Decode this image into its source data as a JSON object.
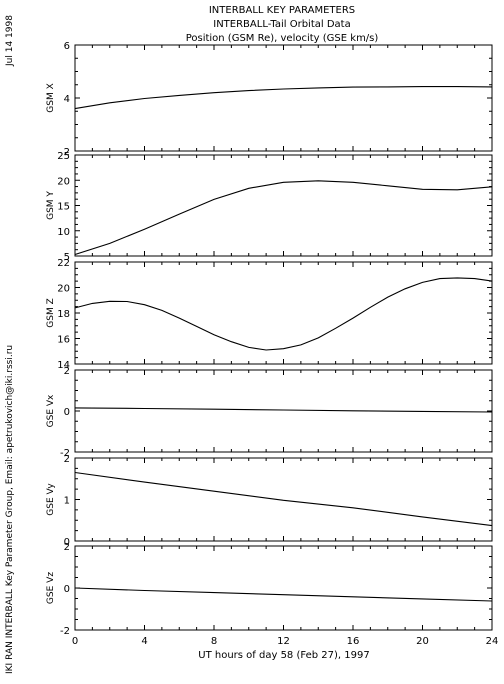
{
  "header": {
    "title_lines": [
      "INTERBALL KEY PARAMETERS",
      "INTERBALL-Tail Orbital Data",
      "Position (GSM Re), velocity (GSE km/s)"
    ],
    "date_stamp": "Jul 14 1998",
    "credit": "IKI RAN INTERBALL Key Parameter Group, Email: apetrukovich@iki.rssi.ru"
  },
  "chart_data": {
    "type": "line",
    "xlabel": "UT hours of day  58 (Feb 27), 1997",
    "xlim": [
      0,
      24
    ],
    "xticks": [
      0,
      4,
      8,
      12,
      16,
      20,
      24
    ],
    "panels": [
      {
        "ylabel": "GSM X",
        "ylim": [
          2,
          6
        ],
        "yticks": [
          2,
          4,
          6
        ],
        "x": [
          0,
          2,
          4,
          6,
          8,
          10,
          12,
          14,
          16,
          18,
          20,
          22,
          24
        ],
        "y": [
          3.6,
          3.82,
          3.98,
          4.1,
          4.2,
          4.28,
          4.34,
          4.38,
          4.41,
          4.42,
          4.43,
          4.43,
          4.42
        ]
      },
      {
        "ylabel": "GSM Y",
        "ylim": [
          5,
          25
        ],
        "yticks": [
          5,
          10,
          15,
          20,
          25
        ],
        "x": [
          0,
          2,
          4,
          6,
          8,
          10,
          12,
          14,
          16,
          18,
          20,
          22,
          24
        ],
        "y": [
          5.3,
          7.5,
          10.3,
          13.3,
          16.2,
          18.4,
          19.6,
          19.9,
          19.6,
          18.9,
          18.2,
          18.1,
          18.7
        ]
      },
      {
        "ylabel": "GSM Z",
        "ylim": [
          14,
          22
        ],
        "yticks": [
          14,
          16,
          18,
          20,
          22
        ],
        "x": [
          0,
          1,
          2,
          3,
          4,
          5,
          6,
          7,
          8,
          9,
          10,
          11,
          12,
          13,
          14,
          15,
          16,
          17,
          18,
          19,
          20,
          21,
          22,
          23,
          24
        ],
        "y": [
          18.4,
          18.75,
          18.92,
          18.9,
          18.65,
          18.2,
          17.6,
          16.95,
          16.3,
          15.75,
          15.3,
          15.1,
          15.2,
          15.5,
          16.05,
          16.8,
          17.6,
          18.45,
          19.25,
          19.9,
          20.4,
          20.7,
          20.75,
          20.7,
          20.5
        ]
      },
      {
        "ylabel": "GSE Vx",
        "ylim": [
          -2,
          2
        ],
        "yticks": [
          -2,
          0,
          2
        ],
        "x": [
          0,
          4,
          8,
          12,
          16,
          20,
          24
        ],
        "y": [
          0.15,
          0.12,
          0.09,
          0.05,
          0.01,
          -0.02,
          -0.05
        ]
      },
      {
        "ylabel": "GSE Vy",
        "ylim": [
          0,
          2
        ],
        "yticks": [
          0,
          1,
          2
        ],
        "x": [
          0,
          4,
          8,
          12,
          16,
          20,
          24
        ],
        "y": [
          1.65,
          1.42,
          1.2,
          0.98,
          0.8,
          0.58,
          0.37
        ]
      },
      {
        "ylabel": "GSE Vz",
        "ylim": [
          -2,
          2
        ],
        "yticks": [
          -2,
          0,
          2
        ],
        "x": [
          0,
          4,
          8,
          12,
          16,
          20,
          24
        ],
        "y": [
          0.0,
          -0.12,
          -0.22,
          -0.32,
          -0.42,
          -0.52,
          -0.62
        ]
      }
    ]
  }
}
